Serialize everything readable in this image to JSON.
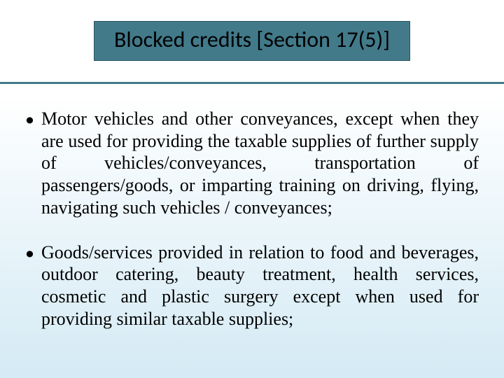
{
  "title": {
    "text": "Blocked credits [Section 17(5)]",
    "box_bg": "#427a8a",
    "box_border": "#2d5560",
    "text_color": "#000000",
    "fontsize": 32
  },
  "divider_color": "#427a8a",
  "background_gradient": {
    "top": "#ffffff",
    "bottom": "#d4eaf4"
  },
  "bullets": [
    {
      "text": "Motor vehicles and other conveyances, except when they are used for providing the taxable supplies of further supply of vehicles/conveyances, transportation of passengers/goods, or imparting training on driving, flying, navigating such vehicles / conveyances;"
    },
    {
      "text": "Goods/services provided in relation to food and beverages, outdoor catering, beauty treatment, health services, cosmetic and plastic surgery except when used for providing similar taxable supplies;"
    }
  ],
  "bullet_fontsize": 26,
  "bullet_color": "#000000"
}
